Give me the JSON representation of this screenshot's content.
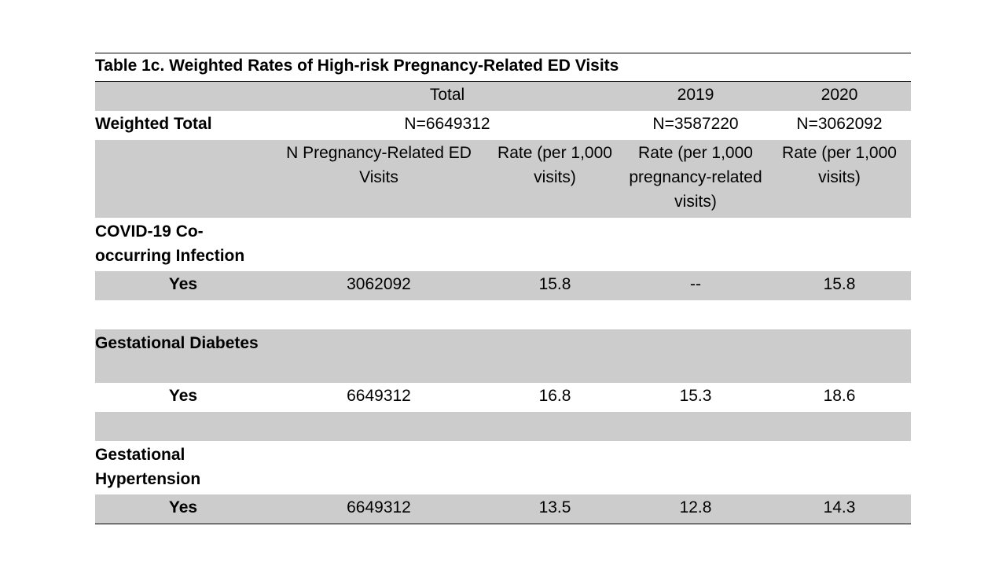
{
  "caption": "Table 1c. Weighted Rates of High-risk Pregnancy-Related ED Visits",
  "header": {
    "col_total": "Total",
    "col_2019": "2019",
    "col_2020": "2020"
  },
  "weighted_total": {
    "label": "Weighted Total",
    "total": "N=6649312",
    "y2019": "N=3587220",
    "y2020": "N=3062092"
  },
  "subheader": {
    "n_visits": "N Pregnancy-Related ED Visits",
    "rate_total": "Rate (per 1,000 visits)",
    "rate_2019": "Rate (per 1,000 pregnancy-related visits)",
    "rate_2020": "Rate (per 1,000 visits)"
  },
  "sections": [
    {
      "label": "COVID-19  Co-occurring Infection",
      "row": {
        "label": "Yes",
        "n": "3062092",
        "rate": "15.8",
        "rate_2019": "--",
        "rate_2020": "15.8"
      }
    },
    {
      "label": "Gestational Diabetes",
      "row": {
        "label": "Yes",
        "n": "6649312",
        "rate": "16.8",
        "rate_2019": "15.3",
        "rate_2020": "18.6"
      }
    },
    {
      "label": "Gestational Hypertension",
      "row": {
        "label": "Yes",
        "n": "6649312",
        "rate": "13.5",
        "rate_2019": "12.8",
        "rate_2020": "14.3"
      }
    }
  ]
}
